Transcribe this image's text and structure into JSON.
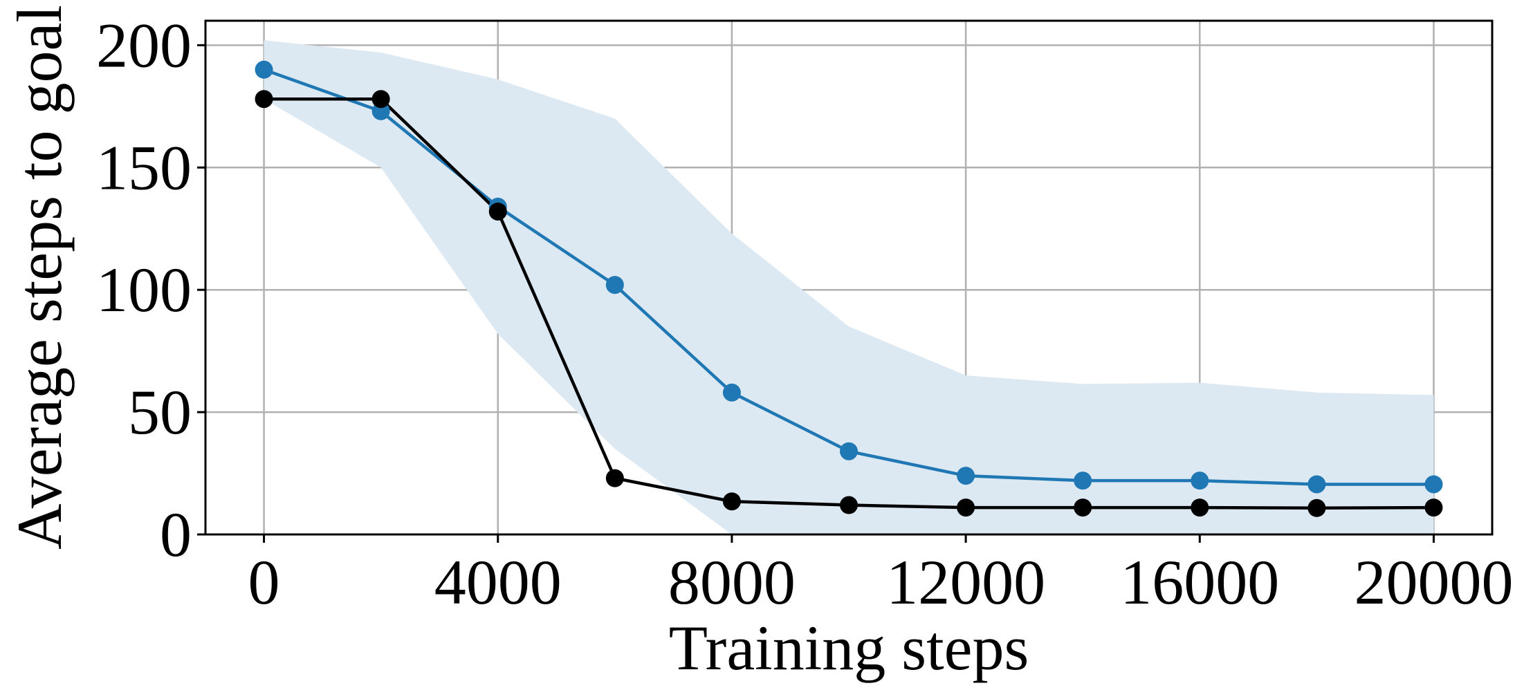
{
  "chart_data": {
    "type": "line",
    "xlabel": "Training steps",
    "ylabel": "Average steps to goal",
    "xlim": [
      -1000,
      21000
    ],
    "ylim": [
      0,
      210
    ],
    "xticks": [
      0,
      4000,
      8000,
      12000,
      16000,
      20000
    ],
    "xtick_labels": [
      "0",
      "4000",
      "8000",
      "12000",
      "16000",
      "20000"
    ],
    "yticks": [
      0,
      50,
      100,
      150,
      200
    ],
    "ytick_labels": [
      "0",
      "50",
      "100",
      "150",
      "200"
    ],
    "grid": true,
    "legend": "none",
    "series": [
      {
        "color": "#1f77b4",
        "marker": "circle",
        "x": [
          0,
          2000,
          4000,
          6000,
          8000,
          10000,
          12000,
          14000,
          16000,
          18000,
          20000
        ],
        "values": [
          190,
          173,
          134,
          102,
          58,
          34,
          24,
          22,
          22,
          20.5,
          20.5
        ],
        "band": {
          "color": "#dce8f2",
          "upper": [
            202,
            197,
            186,
            170,
            123,
            85,
            65,
            61.5,
            62,
            58,
            57
          ],
          "lower": [
            178,
            150,
            82,
            35,
            0,
            -25,
            -25,
            -25,
            -25,
            -25,
            -25
          ]
        }
      },
      {
        "color": "#000000",
        "marker": "circle",
        "x": [
          0,
          2000,
          4000,
          6000,
          8000,
          10000,
          12000,
          14000,
          16000,
          18000,
          20000
        ],
        "values": [
          178,
          178,
          132,
          23,
          13.5,
          12,
          11,
          11,
          11,
          10.8,
          11
        ]
      }
    ]
  }
}
